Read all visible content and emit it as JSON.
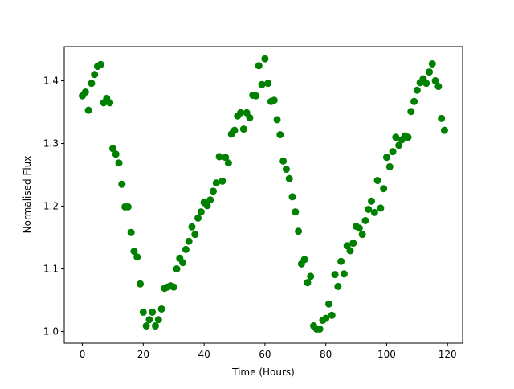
{
  "chart_data": {
    "type": "scatter",
    "x_label": "Time (Hours)",
    "y_label": "Normalised Flux",
    "color": "#008000",
    "grid": false,
    "x": [
      0,
      1,
      2,
      3,
      4,
      5,
      6,
      7,
      8,
      9,
      10,
      11,
      12,
      13,
      14,
      15,
      16,
      17,
      18,
      19,
      20,
      21,
      22,
      23,
      24,
      25,
      26,
      27,
      28,
      29,
      30,
      31,
      32,
      33,
      34,
      35,
      36,
      37,
      38,
      39,
      40,
      41,
      42,
      43,
      44,
      45,
      46,
      47,
      48,
      49,
      50,
      51,
      52,
      53,
      54,
      55,
      56,
      57,
      58,
      59,
      60,
      61,
      62,
      63,
      64,
      65,
      66,
      67,
      68,
      69,
      70,
      71,
      72,
      73,
      74,
      75,
      76,
      77,
      78,
      79,
      80,
      81,
      82,
      83,
      84,
      85,
      86,
      87,
      88,
      89,
      90,
      91,
      92,
      93,
      94,
      95,
      96,
      97,
      98,
      99,
      100,
      101,
      102,
      103,
      104,
      105,
      106,
      107,
      108,
      109,
      110,
      111,
      112,
      113,
      114,
      115,
      116,
      117,
      118,
      119
    ],
    "values": [
      1.376,
      1.382,
      1.353,
      1.396,
      1.41,
      1.423,
      1.426,
      1.365,
      1.372,
      1.365,
      1.292,
      1.283,
      1.269,
      1.235,
      1.199,
      1.199,
      1.158,
      1.128,
      1.119,
      1.076,
      1.031,
      1.009,
      1.019,
      1.031,
      1.009,
      1.019,
      1.036,
      1.069,
      1.071,
      1.073,
      1.071,
      1.1,
      1.117,
      1.11,
      1.131,
      1.144,
      1.167,
      1.155,
      1.181,
      1.191,
      1.206,
      1.201,
      1.21,
      1.224,
      1.237,
      1.279,
      1.24,
      1.278,
      1.269,
      1.315,
      1.321,
      1.344,
      1.349,
      1.323,
      1.349,
      1.341,
      1.377,
      1.376,
      1.424,
      1.394,
      1.435,
      1.396,
      1.367,
      1.369,
      1.338,
      1.314,
      1.272,
      1.259,
      1.244,
      1.215,
      1.191,
      1.16,
      1.108,
      1.115,
      1.078,
      1.088,
      1.009,
      1.004,
      1.004,
      1.018,
      1.021,
      1.044,
      1.026,
      1.091,
      1.072,
      1.112,
      1.092,
      1.137,
      1.129,
      1.141,
      1.168,
      1.165,
      1.155,
      1.177,
      1.195,
      1.208,
      1.19,
      1.241,
      1.197,
      1.228,
      1.278,
      1.263,
      1.287,
      1.31,
      1.297,
      1.306,
      1.312,
      1.31,
      1.351,
      1.367,
      1.385,
      1.397,
      1.403,
      1.396,
      1.414,
      1.427,
      1.4,
      1.391,
      1.34,
      1.321
    ],
    "xlim": [
      -5.95,
      124.95
    ],
    "ylim": [
      0.9815,
      1.4545
    ],
    "xticks": [
      0,
      20,
      40,
      60,
      80,
      100,
      120
    ],
    "yticks": [
      {
        "value": 1.0,
        "label": "1.0"
      },
      1.1,
      1.2,
      1.3,
      1.4
    ]
  }
}
